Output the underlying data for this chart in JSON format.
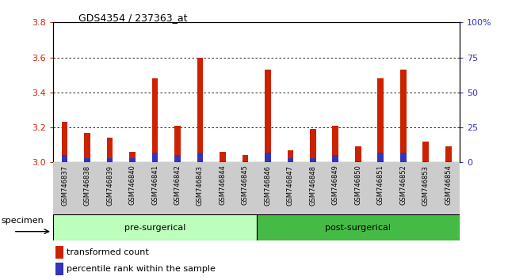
{
  "title": "GDS4354 / 237363_at",
  "samples": [
    "GSM746837",
    "GSM746838",
    "GSM746839",
    "GSM746840",
    "GSM746841",
    "GSM746842",
    "GSM746843",
    "GSM746844",
    "GSM746845",
    "GSM746846",
    "GSM746847",
    "GSM746848",
    "GSM746849",
    "GSM746850",
    "GSM746851",
    "GSM746852",
    "GSM746853",
    "GSM746854"
  ],
  "red_values": [
    3.23,
    3.17,
    3.14,
    3.06,
    3.48,
    3.21,
    3.6,
    3.06,
    3.04,
    3.53,
    3.07,
    3.19,
    3.21,
    3.09,
    3.48,
    3.53,
    3.12,
    3.09
  ],
  "blue_percentiles": [
    5,
    3,
    3,
    3,
    7,
    5,
    7,
    1,
    1,
    7,
    3,
    3,
    5,
    1,
    7,
    7,
    1,
    1
  ],
  "ymin": 3.0,
  "ymax": 3.8,
  "y2min": 0,
  "y2max": 100,
  "yticks": [
    3.0,
    3.2,
    3.4,
    3.6,
    3.8
  ],
  "y2ticks": [
    0,
    25,
    50,
    75,
    100
  ],
  "pre_count": 9,
  "post_count": 9,
  "red_color": "#CC2200",
  "blue_color": "#3333BB",
  "pre_color": "#BBFFBB",
  "post_color": "#44BB44",
  "tick_label_color_pre": "#CCCCCC",
  "legend_red": "transformed count",
  "legend_blue": "percentile rank within the sample",
  "specimen_label": "specimen",
  "group_label_pre": "pre-surgerical",
  "group_label_post": "post-surgerical"
}
